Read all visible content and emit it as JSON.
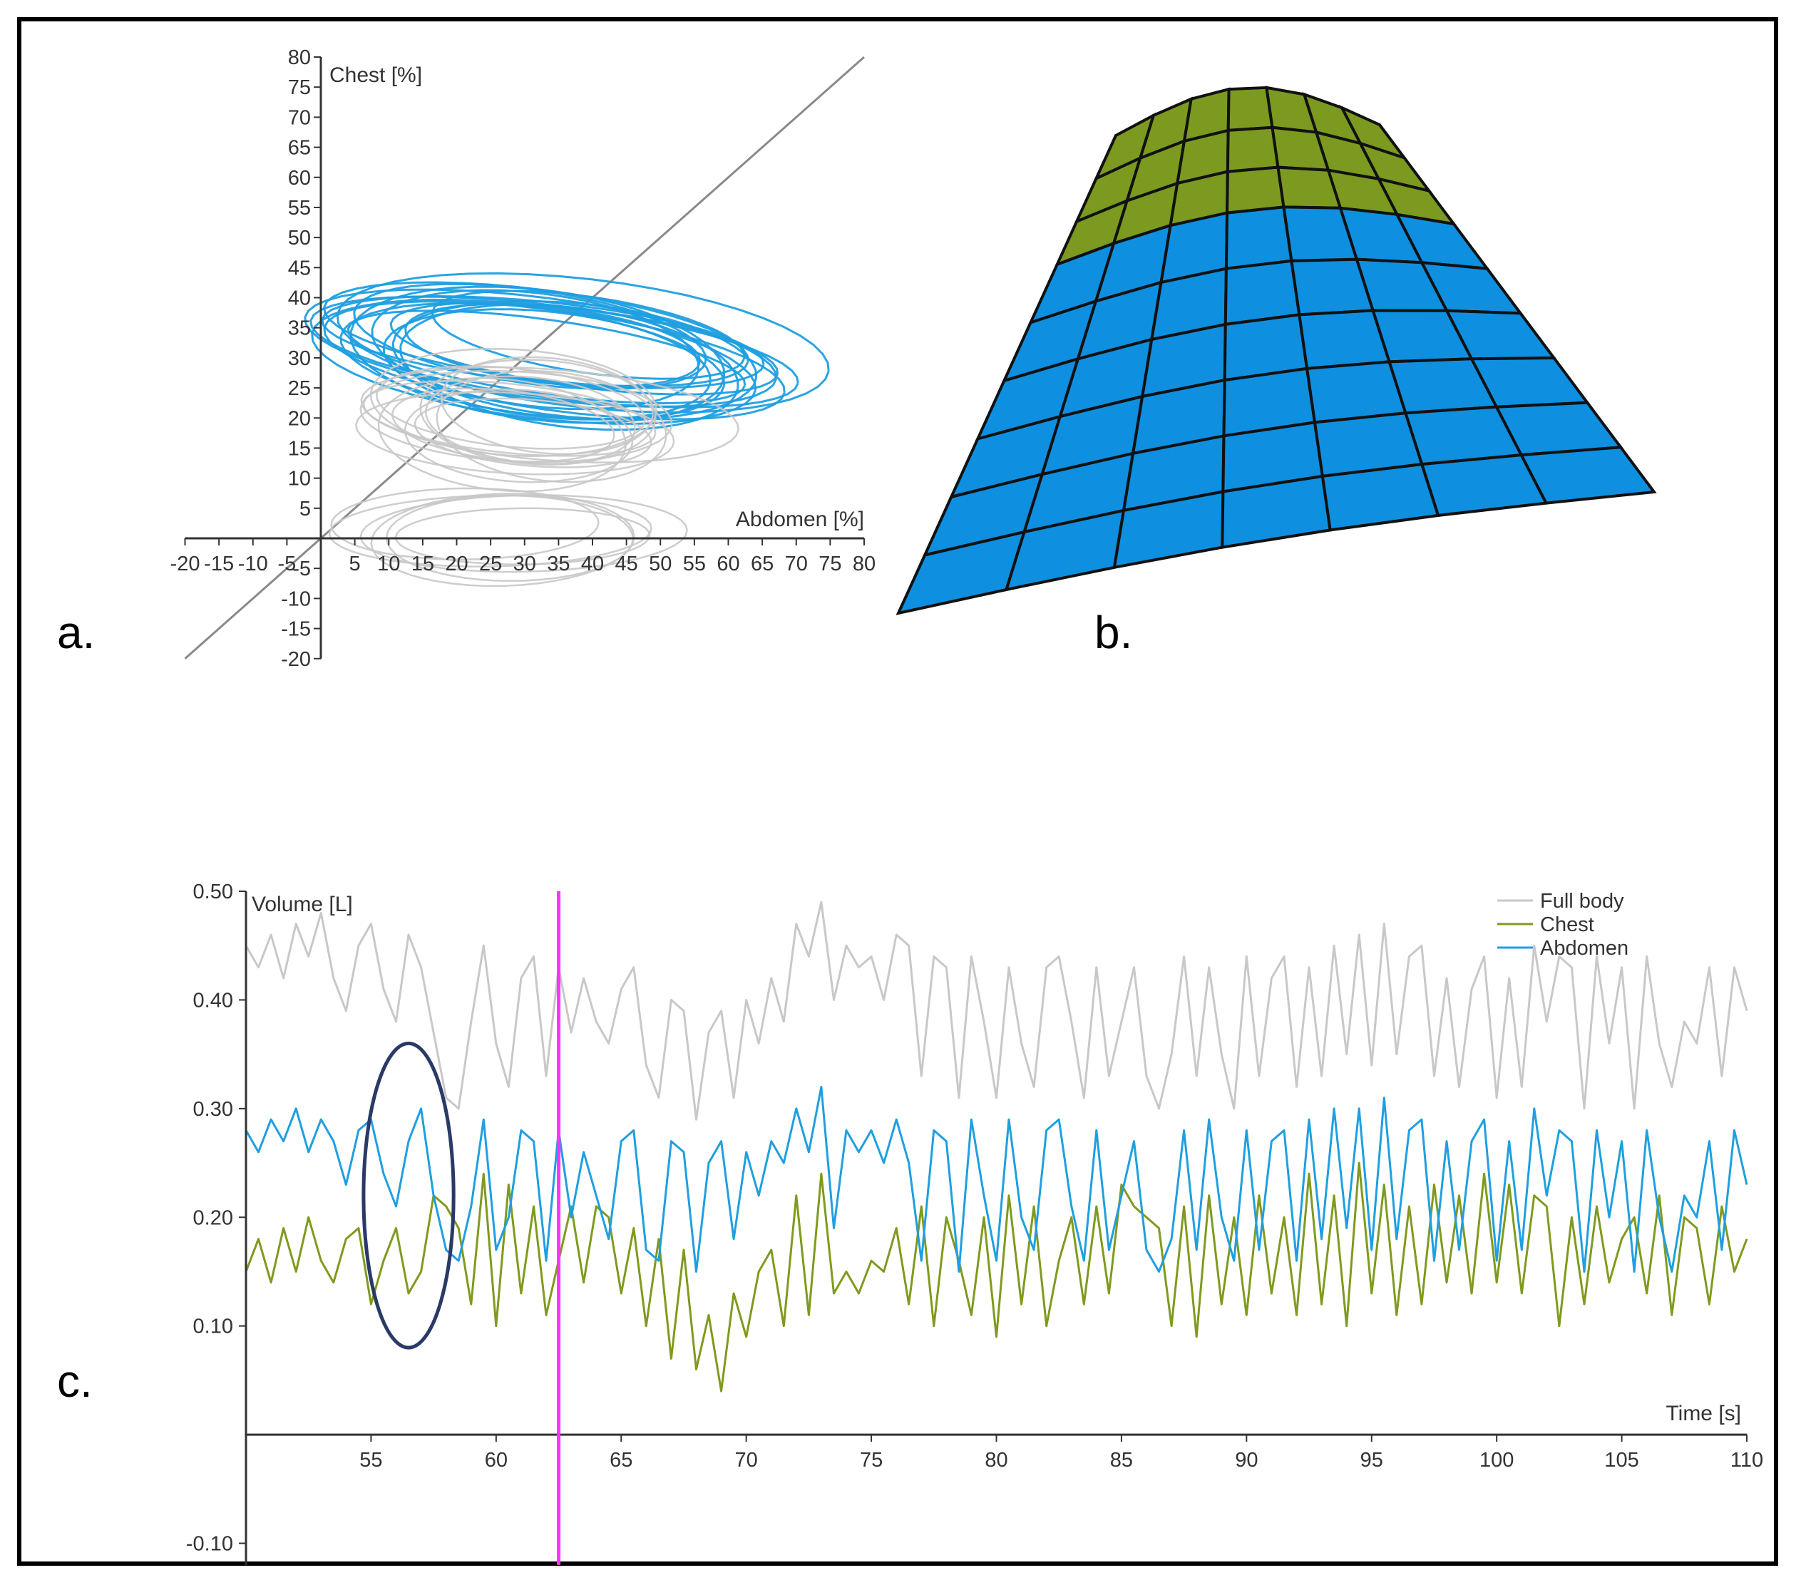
{
  "panels": {
    "a": "a.",
    "b": "b.",
    "c": "c."
  },
  "colors": {
    "chest": "#7f9a1e",
    "abdomen": "#1f9fe0",
    "full_body": "#c8c8c8",
    "mesh_chest": "#7b9a1f",
    "mesh_abdomen": "#0f8fe0",
    "marker": "#ff33ff",
    "ellipse": "#2a3a66"
  },
  "chart_data": [
    {
      "panel": "a",
      "type": "line",
      "xlabel": "Abdomen [%]",
      "ylabel": "Chest [%]",
      "xlim": [
        -20,
        80
      ],
      "ylim": [
        -20,
        80
      ],
      "x_ticks": [
        "-20",
        "-15",
        "-10",
        "-5",
        "5",
        "10",
        "15",
        "20",
        "25",
        "30",
        "35",
        "40",
        "45",
        "50",
        "55",
        "60",
        "65",
        "70",
        "75",
        "80"
      ],
      "y_ticks": [
        "80",
        "75",
        "70",
        "65",
        "60",
        "55",
        "50",
        "45",
        "40",
        "35",
        "30",
        "25",
        "20",
        "15",
        "10",
        "5",
        "-5",
        "-10",
        "-15",
        "-20"
      ],
      "reference_line": {
        "from": [
          -20,
          -20
        ],
        "to": [
          80,
          80
        ]
      },
      "loops": [
        {
          "series": "Abdomen",
          "cx": 35,
          "cy": 31,
          "rx": 37,
          "ry": 11,
          "tilt": -8,
          "count": 18
        },
        {
          "series": "Full body",
          "cx": 30,
          "cy": 20,
          "rx": 28,
          "ry": 10,
          "tilt": -5,
          "count": 14
        },
        {
          "series": "Full body",
          "cx": 25,
          "cy": 0,
          "rx": 25,
          "ry": 8,
          "tilt": 0,
          "count": 6
        }
      ]
    },
    {
      "panel": "c",
      "type": "line",
      "xlabel": "Time [s]",
      "ylabel": "Volume [L]",
      "xlim": [
        50,
        110
      ],
      "ylim": [
        -0.12,
        0.5
      ],
      "x_ticks": [
        "55",
        "60",
        "65",
        "70",
        "75",
        "80",
        "85",
        "90",
        "95",
        "100",
        "105",
        "110"
      ],
      "y_ticks": [
        {
          "v": 0.5,
          "label": "0.50"
        },
        {
          "v": 0.4,
          "label": "0.40"
        },
        {
          "v": 0.3,
          "label": "0.30"
        },
        {
          "v": 0.2,
          "label": "0.20"
        },
        {
          "v": 0.1,
          "label": "0.10"
        },
        {
          "v": -0.1,
          "label": "-0.10"
        }
      ],
      "legend": [
        "Full body",
        "Chest",
        "Abdomen"
      ],
      "legend_position": "top-right",
      "marker_time": 62.5,
      "highlight_ellipse": {
        "x": 56.5,
        "y": 0.22,
        "w": 3.6,
        "h": 0.28
      },
      "series": [
        {
          "name": "Full body",
          "x": [
            50,
            50.5,
            51,
            51.5,
            52,
            52.5,
            53,
            53.5,
            54,
            54.5,
            55,
            55.5,
            56,
            56.5,
            57,
            57.5,
            58,
            58.5,
            59,
            59.5,
            60,
            60.5,
            61,
            61.5,
            62,
            62.5,
            63,
            63.5,
            64,
            64.5,
            65,
            65.5,
            66,
            66.5,
            67,
            67.5,
            68,
            68.5,
            69,
            69.5,
            70,
            70.5,
            71,
            71.5,
            72,
            72.5,
            73,
            73.5,
            74,
            74.5,
            75,
            75.5,
            76,
            76.5,
            77,
            77.5,
            78,
            78.5,
            79,
            79.5,
            80,
            80.5,
            81,
            81.5,
            82,
            82.5,
            83,
            83.5,
            84,
            84.5,
            85,
            85.5,
            86,
            86.5,
            87,
            87.5,
            88,
            88.5,
            89,
            89.5,
            90,
            90.5,
            91,
            91.5,
            92,
            92.5,
            93,
            93.5,
            94,
            94.5,
            95,
            95.5,
            96,
            96.5,
            97,
            97.5,
            98,
            98.5,
            99,
            99.5,
            100,
            100.5,
            101,
            101.5,
            102,
            102.5,
            103,
            103.5,
            104,
            104.5,
            105,
            105.5,
            106,
            106.5,
            107,
            107.5,
            108,
            108.5,
            109,
            109.5,
            110
          ],
          "values": [
            0.45,
            0.43,
            0.46,
            0.42,
            0.47,
            0.44,
            0.48,
            0.42,
            0.39,
            0.45,
            0.47,
            0.41,
            0.38,
            0.46,
            0.43,
            0.37,
            0.31,
            0.3,
            0.38,
            0.45,
            0.36,
            0.32,
            0.42,
            0.44,
            0.33,
            0.43,
            0.37,
            0.42,
            0.38,
            0.36,
            0.41,
            0.43,
            0.34,
            0.31,
            0.4,
            0.39,
            0.29,
            0.37,
            0.39,
            0.31,
            0.4,
            0.36,
            0.42,
            0.38,
            0.47,
            0.44,
            0.49,
            0.4,
            0.45,
            0.43,
            0.44,
            0.4,
            0.46,
            0.45,
            0.33,
            0.44,
            0.43,
            0.31,
            0.44,
            0.38,
            0.31,
            0.43,
            0.36,
            0.32,
            0.43,
            0.44,
            0.38,
            0.31,
            0.43,
            0.33,
            0.38,
            0.43,
            0.33,
            0.3,
            0.35,
            0.44,
            0.33,
            0.43,
            0.35,
            0.3,
            0.44,
            0.33,
            0.42,
            0.44,
            0.32,
            0.43,
            0.33,
            0.45,
            0.35,
            0.46,
            0.34,
            0.47,
            0.35,
            0.44,
            0.45,
            0.33,
            0.42,
            0.32,
            0.41,
            0.44,
            0.31,
            0.42,
            0.32,
            0.45,
            0.38,
            0.44,
            0.43,
            0.3,
            0.44,
            0.36,
            0.43,
            0.3,
            0.44,
            0.36,
            0.32,
            0.38,
            0.36,
            0.43,
            0.33,
            0.43,
            0.39
          ]
        },
        {
          "name": "Chest",
          "x": [
            50,
            50.5,
            51,
            51.5,
            52,
            52.5,
            53,
            53.5,
            54,
            54.5,
            55,
            55.5,
            56,
            56.5,
            57,
            57.5,
            58,
            58.5,
            59,
            59.5,
            60,
            60.5,
            61,
            61.5,
            62,
            62.5,
            63,
            63.5,
            64,
            64.5,
            65,
            65.5,
            66,
            66.5,
            67,
            67.5,
            68,
            68.5,
            69,
            69.5,
            70,
            70.5,
            71,
            71.5,
            72,
            72.5,
            73,
            73.5,
            74,
            74.5,
            75,
            75.5,
            76,
            76.5,
            77,
            77.5,
            78,
            78.5,
            79,
            79.5,
            80,
            80.5,
            81,
            81.5,
            82,
            82.5,
            83,
            83.5,
            84,
            84.5,
            85,
            85.5,
            86,
            86.5,
            87,
            87.5,
            88,
            88.5,
            89,
            89.5,
            90,
            90.5,
            91,
            91.5,
            92,
            92.5,
            93,
            93.5,
            94,
            94.5,
            95,
            95.5,
            96,
            96.5,
            97,
            97.5,
            98,
            98.5,
            99,
            99.5,
            100,
            100.5,
            101,
            101.5,
            102,
            102.5,
            103,
            103.5,
            104,
            104.5,
            105,
            105.5,
            106,
            106.5,
            107,
            107.5,
            108,
            108.5,
            109,
            109.5,
            110
          ],
          "values": [
            0.15,
            0.18,
            0.14,
            0.19,
            0.15,
            0.2,
            0.16,
            0.14,
            0.18,
            0.19,
            0.12,
            0.16,
            0.19,
            0.13,
            0.15,
            0.22,
            0.21,
            0.19,
            0.12,
            0.24,
            0.1,
            0.23,
            0.13,
            0.21,
            0.11,
            0.16,
            0.21,
            0.14,
            0.21,
            0.2,
            0.13,
            0.19,
            0.1,
            0.18,
            0.07,
            0.17,
            0.06,
            0.11,
            0.04,
            0.13,
            0.09,
            0.15,
            0.17,
            0.1,
            0.22,
            0.11,
            0.24,
            0.13,
            0.15,
            0.13,
            0.16,
            0.15,
            0.19,
            0.12,
            0.21,
            0.1,
            0.2,
            0.16,
            0.11,
            0.2,
            0.09,
            0.22,
            0.12,
            0.21,
            0.1,
            0.16,
            0.2,
            0.12,
            0.21,
            0.13,
            0.23,
            0.21,
            0.2,
            0.19,
            0.1,
            0.21,
            0.09,
            0.22,
            0.12,
            0.2,
            0.11,
            0.22,
            0.13,
            0.2,
            0.11,
            0.24,
            0.12,
            0.22,
            0.1,
            0.25,
            0.13,
            0.23,
            0.11,
            0.21,
            0.12,
            0.23,
            0.14,
            0.22,
            0.13,
            0.24,
            0.14,
            0.23,
            0.13,
            0.22,
            0.21,
            0.1,
            0.2,
            0.12,
            0.21,
            0.14,
            0.18,
            0.2,
            0.13,
            0.22,
            0.11,
            0.2,
            0.19,
            0.12,
            0.21,
            0.15,
            0.18
          ]
        },
        {
          "name": "Abdomen",
          "x": [
            50,
            50.5,
            51,
            51.5,
            52,
            52.5,
            53,
            53.5,
            54,
            54.5,
            55,
            55.5,
            56,
            56.5,
            57,
            57.5,
            58,
            58.5,
            59,
            59.5,
            60,
            60.5,
            61,
            61.5,
            62,
            62.5,
            63,
            63.5,
            64,
            64.5,
            65,
            65.5,
            66,
            66.5,
            67,
            67.5,
            68,
            68.5,
            69,
            69.5,
            70,
            70.5,
            71,
            71.5,
            72,
            72.5,
            73,
            73.5,
            74,
            74.5,
            75,
            75.5,
            76,
            76.5,
            77,
            77.5,
            78,
            78.5,
            79,
            79.5,
            80,
            80.5,
            81,
            81.5,
            82,
            82.5,
            83,
            83.5,
            84,
            84.5,
            85,
            85.5,
            86,
            86.5,
            87,
            87.5,
            88,
            88.5,
            89,
            89.5,
            90,
            90.5,
            91,
            91.5,
            92,
            92.5,
            93,
            93.5,
            94,
            94.5,
            95,
            95.5,
            96,
            96.5,
            97,
            97.5,
            98,
            98.5,
            99,
            99.5,
            100,
            100.5,
            101,
            101.5,
            102,
            102.5,
            103,
            103.5,
            104,
            104.5,
            105,
            105.5,
            106,
            106.5,
            107,
            107.5,
            108,
            108.5,
            109,
            109.5,
            110
          ],
          "values": [
            0.28,
            0.26,
            0.29,
            0.27,
            0.3,
            0.26,
            0.29,
            0.27,
            0.23,
            0.28,
            0.29,
            0.24,
            0.21,
            0.27,
            0.3,
            0.22,
            0.17,
            0.16,
            0.21,
            0.29,
            0.17,
            0.2,
            0.28,
            0.27,
            0.16,
            0.28,
            0.2,
            0.26,
            0.22,
            0.18,
            0.27,
            0.28,
            0.17,
            0.16,
            0.27,
            0.26,
            0.15,
            0.25,
            0.27,
            0.18,
            0.26,
            0.22,
            0.27,
            0.25,
            0.3,
            0.26,
            0.32,
            0.19,
            0.28,
            0.26,
            0.28,
            0.25,
            0.29,
            0.25,
            0.16,
            0.28,
            0.27,
            0.15,
            0.29,
            0.22,
            0.16,
            0.29,
            0.2,
            0.17,
            0.28,
            0.29,
            0.21,
            0.16,
            0.28,
            0.17,
            0.22,
            0.27,
            0.17,
            0.15,
            0.18,
            0.28,
            0.17,
            0.29,
            0.2,
            0.16,
            0.28,
            0.17,
            0.27,
            0.28,
            0.16,
            0.29,
            0.18,
            0.3,
            0.19,
            0.3,
            0.17,
            0.31,
            0.18,
            0.28,
            0.29,
            0.16,
            0.27,
            0.17,
            0.27,
            0.29,
            0.16,
            0.27,
            0.17,
            0.3,
            0.22,
            0.28,
            0.27,
            0.15,
            0.28,
            0.2,
            0.27,
            0.15,
            0.28,
            0.2,
            0.15,
            0.22,
            0.2,
            0.27,
            0.17,
            0.28,
            0.23
          ]
        }
      ]
    }
  ]
}
